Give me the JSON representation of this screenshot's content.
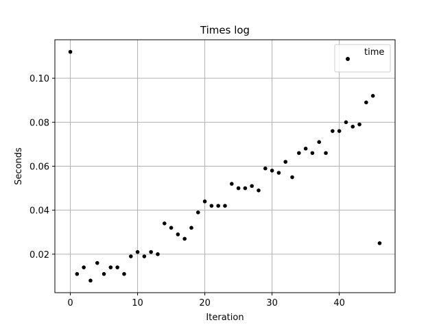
{
  "chart_data": {
    "type": "scatter",
    "title": "Times log",
    "xlabel": "Iteration",
    "ylabel": "Seconds",
    "xlim": [
      -2.3,
      48.3
    ],
    "ylim": [
      0.0025,
      0.1175
    ],
    "xticks": [
      0,
      10,
      20,
      30,
      40
    ],
    "yticks": [
      0.02,
      0.04,
      0.06,
      0.08,
      0.1
    ],
    "xtick_labels": [
      "0",
      "10",
      "20",
      "30",
      "40"
    ],
    "ytick_labels": [
      "0.02",
      "0.04",
      "0.06",
      "0.08",
      "0.10"
    ],
    "grid": true,
    "legend_position": "top-right",
    "marker_color": "#000000",
    "grid_color": "#b0b0b0",
    "series": [
      {
        "name": "time",
        "x": [
          0,
          1,
          2,
          3,
          4,
          5,
          6,
          7,
          8,
          9,
          10,
          11,
          12,
          13,
          14,
          15,
          16,
          17,
          18,
          19,
          20,
          21,
          22,
          23,
          24,
          25,
          26,
          27,
          28,
          29,
          30,
          31,
          32,
          33,
          34,
          35,
          36,
          37,
          38,
          39,
          40,
          41,
          42,
          43,
          44,
          45,
          46
        ],
        "y": [
          0.112,
          0.011,
          0.014,
          0.008,
          0.016,
          0.011,
          0.014,
          0.014,
          0.011,
          0.019,
          0.021,
          0.019,
          0.021,
          0.02,
          0.034,
          0.032,
          0.029,
          0.027,
          0.032,
          0.039,
          0.044,
          0.042,
          0.042,
          0.042,
          0.052,
          0.05,
          0.05,
          0.051,
          0.049,
          0.059,
          0.058,
          0.057,
          0.062,
          0.055,
          0.066,
          0.068,
          0.066,
          0.071,
          0.066,
          0.076,
          0.076,
          0.08,
          0.078,
          0.079,
          0.089,
          0.092,
          0.025
        ]
      }
    ]
  }
}
